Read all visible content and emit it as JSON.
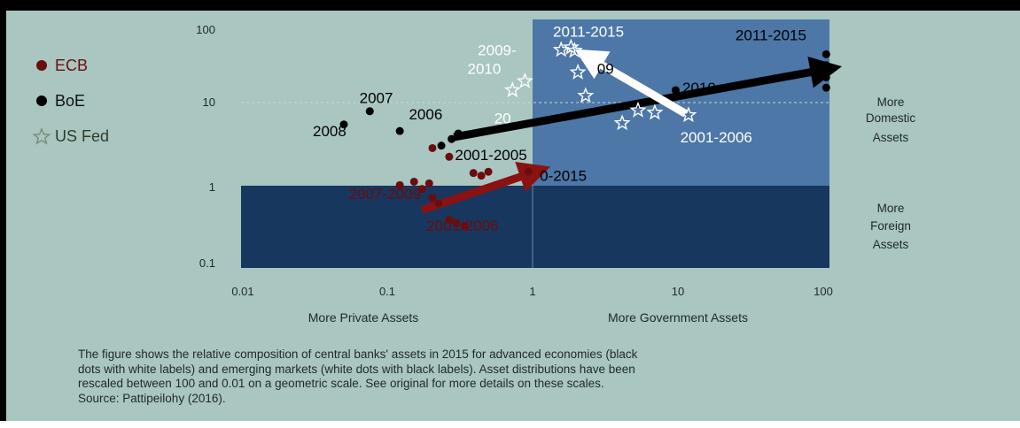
{
  "chart_data": {
    "type": "scatter",
    "x_scale": "log",
    "y_scale": "log",
    "xlim": [
      0.01,
      100
    ],
    "ylim": [
      0.1,
      100
    ],
    "x_ticks": [
      "0.01",
      "0.1",
      "1",
      "10",
      "100"
    ],
    "y_ticks": [
      "100",
      "10",
      "1",
      "0.1"
    ],
    "xlabel_left": "More Private Assets",
    "xlabel_right": "More Government Assets",
    "ylabel_upper": [
      "More",
      "Domestic",
      "Assets"
    ],
    "ylabel_lower": [
      "More",
      "Foreign",
      "Assets"
    ],
    "legend": [
      {
        "label": "ECB",
        "marker": "dot",
        "color": "#6b0d0d"
      },
      {
        "label": "BoE",
        "marker": "dot",
        "color": "#000000"
      },
      {
        "label": "US Fed",
        "marker": "star",
        "color": "#7d8f7a"
      }
    ],
    "series": [
      {
        "name": "ECB",
        "marker": "dot",
        "color": "#6b0d0d",
        "points": [
          {
            "x": 0.12,
            "y": 1.0
          },
          {
            "x": 0.15,
            "y": 1.1
          },
          {
            "x": 0.17,
            "y": 0.9
          },
          {
            "x": 0.19,
            "y": 1.05
          },
          {
            "x": 0.2,
            "y": 0.7
          },
          {
            "x": 0.22,
            "y": 0.6
          },
          {
            "x": 0.26,
            "y": 0.38
          },
          {
            "x": 0.29,
            "y": 0.35
          },
          {
            "x": 0.33,
            "y": 0.32
          },
          {
            "x": 0.38,
            "y": 1.4
          },
          {
            "x": 0.43,
            "y": 1.3
          },
          {
            "x": 0.48,
            "y": 1.45
          },
          {
            "x": 0.9,
            "y": 1.45
          },
          {
            "x": 0.2,
            "y": 2.8
          },
          {
            "x": 0.26,
            "y": 2.2
          }
        ]
      },
      {
        "name": "BoE",
        "marker": "dot",
        "color": "#000000",
        "points": [
          {
            "x": 0.05,
            "y": 5.4
          },
          {
            "x": 0.075,
            "y": 7.8
          },
          {
            "x": 0.12,
            "y": 4.5
          },
          {
            "x": 0.23,
            "y": 3.0
          },
          {
            "x": 0.27,
            "y": 3.6
          },
          {
            "x": 0.3,
            "y": 4.2
          },
          {
            "x": 9.0,
            "y": 14.0
          },
          {
            "x": 95,
            "y": 38
          },
          {
            "x": 95,
            "y": 28
          },
          {
            "x": 95,
            "y": 20
          },
          {
            "x": 95,
            "y": 15
          }
        ]
      },
      {
        "name": "US Fed",
        "marker": "star",
        "color": "#ffffff",
        "points": [
          {
            "x": 0.7,
            "y": 14.0
          },
          {
            "x": 0.85,
            "y": 18.0
          },
          {
            "x": 1.5,
            "y": 43
          },
          {
            "x": 1.75,
            "y": 46
          },
          {
            "x": 1.85,
            "y": 42
          },
          {
            "x": 1.95,
            "y": 23
          },
          {
            "x": 2.2,
            "y": 12.0
          },
          {
            "x": 3.9,
            "y": 5.6
          },
          {
            "x": 5.0,
            "y": 8.0
          },
          {
            "x": 6.5,
            "y": 7.5
          },
          {
            "x": 11.0,
            "y": 7.0
          }
        ]
      }
    ],
    "arrows": [
      {
        "from": [
          0.17,
          0.5
        ],
        "to": [
          1.0,
          1.45
        ],
        "color": "#8b1212"
      },
      {
        "from": [
          0.28,
          3.8
        ],
        "to": [
          95,
          25
        ],
        "color": "#000000"
      },
      {
        "from": [
          10.5,
          7.3
        ],
        "to": [
          2.3,
          35
        ],
        "color": "#ffffff"
      }
    ],
    "annotations": [
      {
        "text": "2007",
        "x": 0.083,
        "y": 9.8,
        "color": "#000000"
      },
      {
        "text": "2006",
        "x": 0.18,
        "y": 6.2,
        "color": "#000000"
      },
      {
        "text": "2008",
        "x": 0.04,
        "y": 3.9,
        "color": "#000000"
      },
      {
        "text": "2001-2005",
        "x": 0.5,
        "y": 2.0,
        "color": "#000000"
      },
      {
        "text": "0-2015",
        "x": 1.55,
        "y": 1.13,
        "color": "#000000"
      },
      {
        "text": "2007-2009",
        "x": 0.095,
        "y": 0.68,
        "color": "#6b0d0d"
      },
      {
        "text": "2001-2006",
        "x": 0.32,
        "y": 0.28,
        "color": "#6b0d0d"
      },
      {
        "text": "2009-",
        "x": 0.55,
        "y": 37,
        "color": "#ffffff"
      },
      {
        "text": "2010",
        "x": 0.45,
        "y": 22,
        "color": "#ffffff"
      },
      {
        "text": "2011-2015",
        "x": 2.3,
        "y": 62,
        "color": "#ffffff"
      },
      {
        "text": "2011-2015",
        "x": 40,
        "y": 56,
        "color": "#000000"
      },
      {
        "text": "2001-2006",
        "x": 17,
        "y": 3.3,
        "color": "#ffffff"
      },
      {
        "text": "09",
        "x": 3.0,
        "y": 22,
        "color": "#000000"
      },
      {
        "text": "2010",
        "x": 13,
        "y": 13.0,
        "color": "#000000"
      },
      {
        "text": "20",
        "x": 0.6,
        "y": 5.6,
        "color": "#ffffff"
      }
    ],
    "grid": false,
    "legend_position": "top-left"
  },
  "caption_lines": [
    "The figure shows the relative composition of central banks' assets in 2015 for advanced economies (black",
    "dots with white labels) and emerging markets (white dots with black labels). Asset distributions have been",
    "rescaled between 100 and 0.01 on a geometric scale. See original for more details on these scales.",
    "Source:  Pattipeilohy (2016)."
  ],
  "colors": {
    "background": "#a9c6c1",
    "region_lower": "#17375e",
    "region_upper_right": "#4c77a6",
    "tick_text": "#1d2a2a"
  }
}
